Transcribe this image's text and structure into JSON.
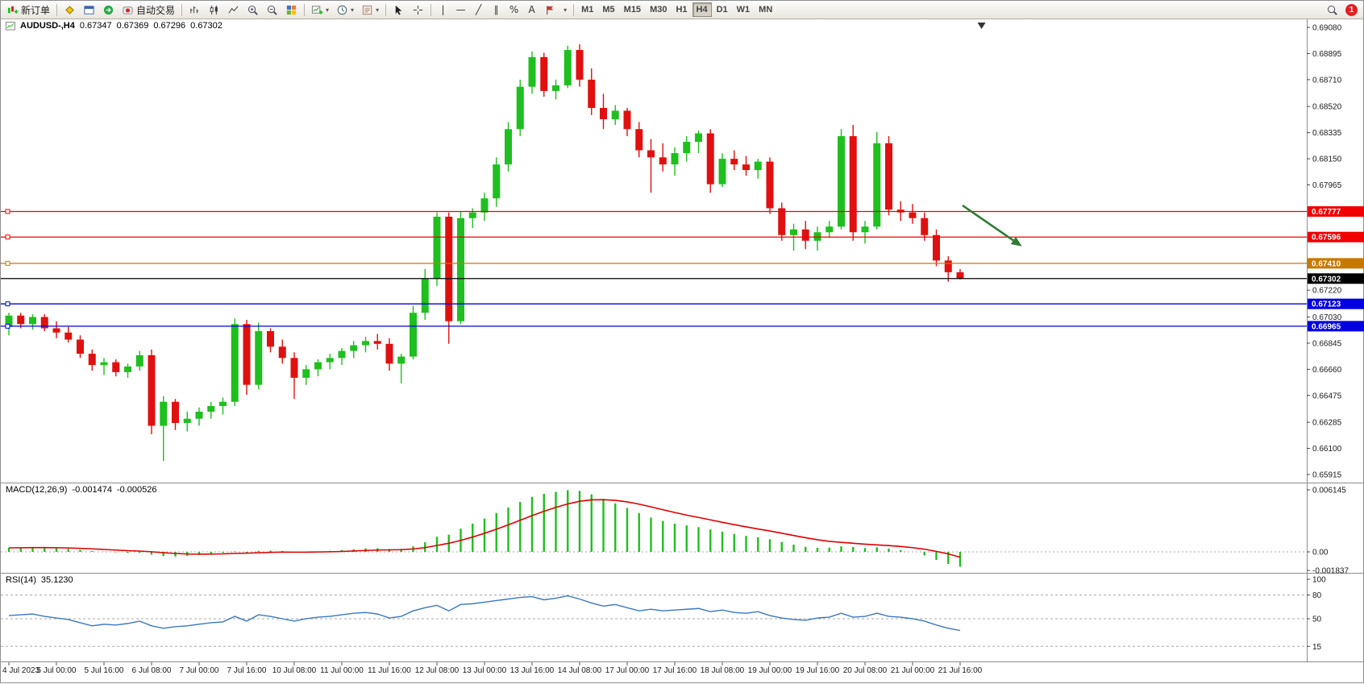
{
  "toolbar": {
    "new_order": "新订单",
    "autotrade": "自动交易",
    "timeframes": [
      "M1",
      "M5",
      "M15",
      "M30",
      "H1",
      "H4",
      "D1",
      "W1",
      "MN"
    ],
    "active_timeframe": "H4",
    "badge": "1"
  },
  "price_pane": {
    "symbol": "AUDUSD-,H4",
    "open": "0.67347",
    "high": "0.67369",
    "low": "0.67296",
    "close": "0.67302"
  },
  "macd_pane": {
    "name": "MACD(12,26,9)",
    "value": "-0.001474",
    "signal_value": "-0.000526"
  },
  "rsi_pane": {
    "name": "RSI(14)",
    "value": "35.1230"
  },
  "chart_data": [
    {
      "type": "candlestick",
      "symbol": "AUDUSD-,H4",
      "ylim": [
        0.65915,
        0.6908
      ],
      "up_color": "#1FBF1F",
      "down_color": "#E01010",
      "y_ticks": [
        "0.69080",
        "0.68895",
        "0.68710",
        "0.68520",
        "0.68335",
        "0.68150",
        "0.67965",
        "0.67220",
        "0.67030",
        "0.66845",
        "0.66660",
        "0.66475",
        "0.66285",
        "0.66100",
        "0.65915"
      ],
      "hlines": [
        {
          "price": 0.67777,
          "label": "0.67777",
          "color": "#f00000"
        },
        {
          "price": 0.67596,
          "label": "0.67596",
          "color": "#f00000"
        },
        {
          "price": 0.6741,
          "label": "0.67410",
          "color": "#c87800"
        },
        {
          "price": 0.67123,
          "label": "0.67123",
          "color": "#0000e0"
        },
        {
          "price": 0.66965,
          "label": "0.66965",
          "color": "#0000e0"
        }
      ],
      "current_price": {
        "price": 0.67302,
        "label": "0.67302",
        "color": "#000000"
      },
      "annotations": [
        {
          "type": "arrow",
          "from": {
            "i": 80.2,
            "price": 0.6782
          },
          "to": {
            "i": 85.2,
            "price": 0.6753
          },
          "color": "#2E7D32"
        }
      ],
      "shift_marker_i": 81.8,
      "x_labels": [
        {
          "i": 0,
          "label": "4 Jul 2023"
        },
        {
          "i": 4,
          "label": "5 Jul 00:00"
        },
        {
          "i": 8,
          "label": "5 Jul 16:00"
        },
        {
          "i": 12,
          "label": "6 Jul 08:00"
        },
        {
          "i": 16,
          "label": "7 Jul 00:00"
        },
        {
          "i": 20,
          "label": "7 Jul 16:00"
        },
        {
          "i": 24,
          "label": "10 Jul 08:00"
        },
        {
          "i": 28,
          "label": "11 Jul 00:00"
        },
        {
          "i": 32,
          "label": "11 Jul 16:00"
        },
        {
          "i": 36,
          "label": "12 Jul 08:00"
        },
        {
          "i": 40,
          "label": "13 Jul 00:00"
        },
        {
          "i": 44,
          "label": "13 Jul 16:00"
        },
        {
          "i": 48,
          "label": "14 Jul 08:00"
        },
        {
          "i": 52,
          "label": "17 Jul 00:00"
        },
        {
          "i": 56,
          "label": "17 Jul 16:00"
        },
        {
          "i": 60,
          "label": "18 Jul 08:00"
        },
        {
          "i": 64,
          "label": "19 Jul 00:00"
        },
        {
          "i": 68,
          "label": "19 Jul 16:00"
        },
        {
          "i": 72,
          "label": "20 Jul 08:00"
        },
        {
          "i": 76,
          "label": "21 Jul 00:00"
        },
        {
          "i": 80,
          "label": "21 Jul 16:00"
        }
      ],
      "candles": [
        [
          0.6696,
          0.6706,
          0.669,
          0.6704
        ],
        [
          0.6704,
          0.6706,
          0.6695,
          0.6698
        ],
        [
          0.6698,
          0.6705,
          0.6694,
          0.6703
        ],
        [
          0.6703,
          0.6705,
          0.6693,
          0.6695
        ],
        [
          0.6695,
          0.67,
          0.6688,
          0.6692
        ],
        [
          0.6692,
          0.6696,
          0.6685,
          0.6687
        ],
        [
          0.6687,
          0.669,
          0.6674,
          0.6677
        ],
        [
          0.6677,
          0.668,
          0.6665,
          0.6669
        ],
        [
          0.6669,
          0.6674,
          0.6662,
          0.6671
        ],
        [
          0.6671,
          0.6673,
          0.6661,
          0.6664
        ],
        [
          0.6664,
          0.667,
          0.666,
          0.6668
        ],
        [
          0.6668,
          0.6679,
          0.6665,
          0.6676
        ],
        [
          0.6676,
          0.668,
          0.662,
          0.6626
        ],
        [
          0.6626,
          0.6647,
          0.6601,
          0.6643
        ],
        [
          0.6643,
          0.6645,
          0.6623,
          0.6628
        ],
        [
          0.6628,
          0.6636,
          0.6622,
          0.6631
        ],
        [
          0.6631,
          0.6639,
          0.6626,
          0.6636
        ],
        [
          0.6636,
          0.6643,
          0.6631,
          0.664
        ],
        [
          0.664,
          0.6646,
          0.6634,
          0.6643
        ],
        [
          0.6643,
          0.6702,
          0.664,
          0.6698
        ],
        [
          0.6698,
          0.6701,
          0.6648,
          0.6655
        ],
        [
          0.6655,
          0.6699,
          0.6652,
          0.6693
        ],
        [
          0.6693,
          0.6695,
          0.6678,
          0.6682
        ],
        [
          0.6682,
          0.6687,
          0.667,
          0.6674
        ],
        [
          0.6674,
          0.6678,
          0.6645,
          0.666
        ],
        [
          0.666,
          0.6669,
          0.6655,
          0.6666
        ],
        [
          0.6666,
          0.6673,
          0.6661,
          0.6671
        ],
        [
          0.6671,
          0.6677,
          0.6666,
          0.6674
        ],
        [
          0.6674,
          0.6681,
          0.6669,
          0.6679
        ],
        [
          0.6679,
          0.6686,
          0.6674,
          0.6683
        ],
        [
          0.6683,
          0.6689,
          0.6678,
          0.6686
        ],
        [
          0.6686,
          0.6691,
          0.668,
          0.6684
        ],
        [
          0.6684,
          0.6688,
          0.6665,
          0.667
        ],
        [
          0.667,
          0.6677,
          0.6656,
          0.6675
        ],
        [
          0.6675,
          0.6711,
          0.6673,
          0.6706
        ],
        [
          0.6706,
          0.6737,
          0.6701,
          0.673
        ],
        [
          0.673,
          0.6777,
          0.6725,
          0.6774
        ],
        [
          0.6774,
          0.6777,
          0.6684,
          0.67
        ],
        [
          0.67,
          0.6778,
          0.6698,
          0.6773
        ],
        [
          0.6773,
          0.678,
          0.6766,
          0.6777
        ],
        [
          0.6777,
          0.6791,
          0.6771,
          0.6787
        ],
        [
          0.6787,
          0.6816,
          0.6781,
          0.6811
        ],
        [
          0.6811,
          0.6841,
          0.6806,
          0.6836
        ],
        [
          0.6836,
          0.6871,
          0.6831,
          0.6866
        ],
        [
          0.6866,
          0.6891,
          0.6861,
          0.6887
        ],
        [
          0.6887,
          0.689,
          0.6859,
          0.6863
        ],
        [
          0.6863,
          0.6871,
          0.6857,
          0.6867
        ],
        [
          0.6867,
          0.6895,
          0.6865,
          0.6892
        ],
        [
          0.6892,
          0.6896,
          0.6866,
          0.6871
        ],
        [
          0.6871,
          0.6879,
          0.6846,
          0.6851
        ],
        [
          0.6851,
          0.6861,
          0.6836,
          0.6843
        ],
        [
          0.6843,
          0.6853,
          0.6839,
          0.6849
        ],
        [
          0.6849,
          0.6851,
          0.6831,
          0.6836
        ],
        [
          0.6836,
          0.6841,
          0.6816,
          0.6821
        ],
        [
          0.6821,
          0.6829,
          0.6791,
          0.6816
        ],
        [
          0.6816,
          0.6826,
          0.6806,
          0.6811
        ],
        [
          0.6811,
          0.6823,
          0.6803,
          0.6819
        ],
        [
          0.6819,
          0.6831,
          0.6813,
          0.6827
        ],
        [
          0.6827,
          0.6835,
          0.6819,
          0.6833
        ],
        [
          0.6833,
          0.6836,
          0.6791,
          0.6797
        ],
        [
          0.6797,
          0.6819,
          0.6795,
          0.6815
        ],
        [
          0.6815,
          0.6821,
          0.6807,
          0.6811
        ],
        [
          0.6811,
          0.6817,
          0.6803,
          0.6807
        ],
        [
          0.6807,
          0.6815,
          0.6801,
          0.6813
        ],
        [
          0.6813,
          0.6816,
          0.6776,
          0.678
        ],
        [
          0.678,
          0.6784,
          0.6757,
          0.6761
        ],
        [
          0.6761,
          0.6769,
          0.675,
          0.6765
        ],
        [
          0.6765,
          0.6771,
          0.6751,
          0.6757
        ],
        [
          0.6757,
          0.6767,
          0.675,
          0.6763
        ],
        [
          0.6763,
          0.6771,
          0.6759,
          0.6767
        ],
        [
          0.6767,
          0.6836,
          0.6765,
          0.6831
        ],
        [
          0.6831,
          0.6839,
          0.6757,
          0.6763
        ],
        [
          0.6763,
          0.6771,
          0.6755,
          0.6767
        ],
        [
          0.6767,
          0.6834,
          0.6765,
          0.6826
        ],
        [
          0.6826,
          0.6831,
          0.6775,
          0.6779
        ],
        [
          0.6779,
          0.6785,
          0.6771,
          0.6777
        ],
        [
          0.6777,
          0.6783,
          0.6769,
          0.6773
        ],
        [
          0.6773,
          0.6777,
          0.6757,
          0.6761
        ],
        [
          0.6761,
          0.6765,
          0.6739,
          0.6743
        ],
        [
          0.6743,
          0.6746,
          0.6728,
          0.67347
        ],
        [
          0.67347,
          0.67369,
          0.67296,
          0.67302
        ]
      ]
    },
    {
      "type": "bar",
      "name": "MACD(12,26,9)",
      "color": "#1FBF1F",
      "signal_color": "#e00000",
      "current_value": -0.001474,
      "current_signal": -0.000526,
      "y_ticks": [
        {
          "v": 0.006145,
          "label": "0.006145"
        },
        {
          "v": 0,
          "label": "0.00"
        },
        {
          "v": -0.001837,
          "label": "-0.001837"
        }
      ],
      "values": [
        0.0004,
        0.00042,
        0.00044,
        0.00041,
        0.00036,
        0.0003,
        0.0002,
        8e-05,
        2e-05,
        -4e-05,
        -0.0001,
        -8e-05,
        -0.00028,
        -0.00042,
        -0.00046,
        -0.0004,
        -0.0003,
        -0.0002,
        -0.0001,
        5e-05,
        -8e-05,
        0.0001,
        0.00012,
        8e-05,
        -5e-05,
        -2e-05,
        4e-05,
        0.0001,
        0.00018,
        0.00026,
        0.00034,
        0.00036,
        0.00028,
        0.0003,
        0.00055,
        0.00095,
        0.0015,
        0.0017,
        0.0023,
        0.0028,
        0.0033,
        0.00385,
        0.0044,
        0.00495,
        0.00545,
        0.00575,
        0.00595,
        0.00612,
        0.00605,
        0.0057,
        0.00525,
        0.0048,
        0.00435,
        0.00385,
        0.0034,
        0.00305,
        0.0028,
        0.00262,
        0.00245,
        0.00222,
        0.002,
        0.00178,
        0.00158,
        0.00145,
        0.00125,
        0.00098,
        0.00072,
        0.0005,
        0.0004,
        0.00042,
        0.00055,
        0.00048,
        0.00038,
        0.00045,
        0.00032,
        0.00018,
        0.0,
        -0.00035,
        -0.0008,
        -0.0012,
        -0.001474
      ],
      "signal": [
        0.0004,
        0.00041,
        0.00042,
        0.00042,
        0.00041,
        0.00039,
        0.00035,
        0.0003,
        0.00024,
        0.00018,
        0.00012,
        8e-05,
        1e-05,
        -8e-05,
        -0.00016,
        -0.00021,
        -0.00023,
        -0.00022,
        -0.0002,
        -0.00015,
        -0.00013,
        -9e-05,
        -5e-05,
        -2e-05,
        -3e-05,
        -3e-05,
        -1e-05,
        1e-05,
        4e-05,
        9e-05,
        0.00014,
        0.00018,
        0.0002,
        0.00022,
        0.00029,
        0.00042,
        0.00064,
        0.00085,
        0.00114,
        0.00147,
        0.00184,
        0.00224,
        0.00267,
        0.00313,
        0.00359,
        0.00402,
        0.00441,
        0.00475,
        0.00501,
        0.00515,
        0.00517,
        0.0051,
        0.00495,
        0.00473,
        0.00446,
        0.00418,
        0.0039,
        0.00364,
        0.00341,
        0.00317,
        0.00293,
        0.0027,
        0.00248,
        0.00227,
        0.00207,
        0.00185,
        0.00162,
        0.0014,
        0.0012,
        0.00104,
        0.00094,
        0.00085,
        0.00076,
        0.00069,
        0.00062,
        0.00053,
        0.00042,
        0.00027,
        5e-05,
        -0.0002,
        -0.000526
      ]
    },
    {
      "type": "line",
      "name": "RSI(14)",
      "color": "#3a78c2",
      "current_value": 35.123,
      "levels": [
        80,
        50,
        15
      ],
      "y_ticks": [
        {
          "v": 100,
          "label": "100"
        },
        {
          "v": 80,
          "label": "80"
        },
        {
          "v": 50,
          "label": "50"
        },
        {
          "v": 15,
          "label": "15"
        }
      ],
      "values": [
        54,
        55,
        56,
        53,
        51,
        49,
        45,
        41,
        43,
        42,
        44,
        47,
        41,
        38,
        40,
        41,
        43,
        45,
        46,
        53,
        47,
        55,
        53,
        50,
        47,
        50,
        52,
        53,
        55,
        57,
        58,
        56,
        51,
        53,
        60,
        64,
        67,
        60,
        68,
        69,
        71,
        73,
        75,
        77,
        78,
        74,
        76,
        79,
        75,
        70,
        66,
        68,
        64,
        60,
        62,
        60,
        61,
        62,
        63,
        59,
        61,
        58,
        57,
        59,
        54,
        51,
        49,
        48,
        51,
        52,
        57,
        52,
        53,
        57,
        53,
        52,
        50,
        47,
        42,
        38,
        35.12
      ]
    }
  ]
}
